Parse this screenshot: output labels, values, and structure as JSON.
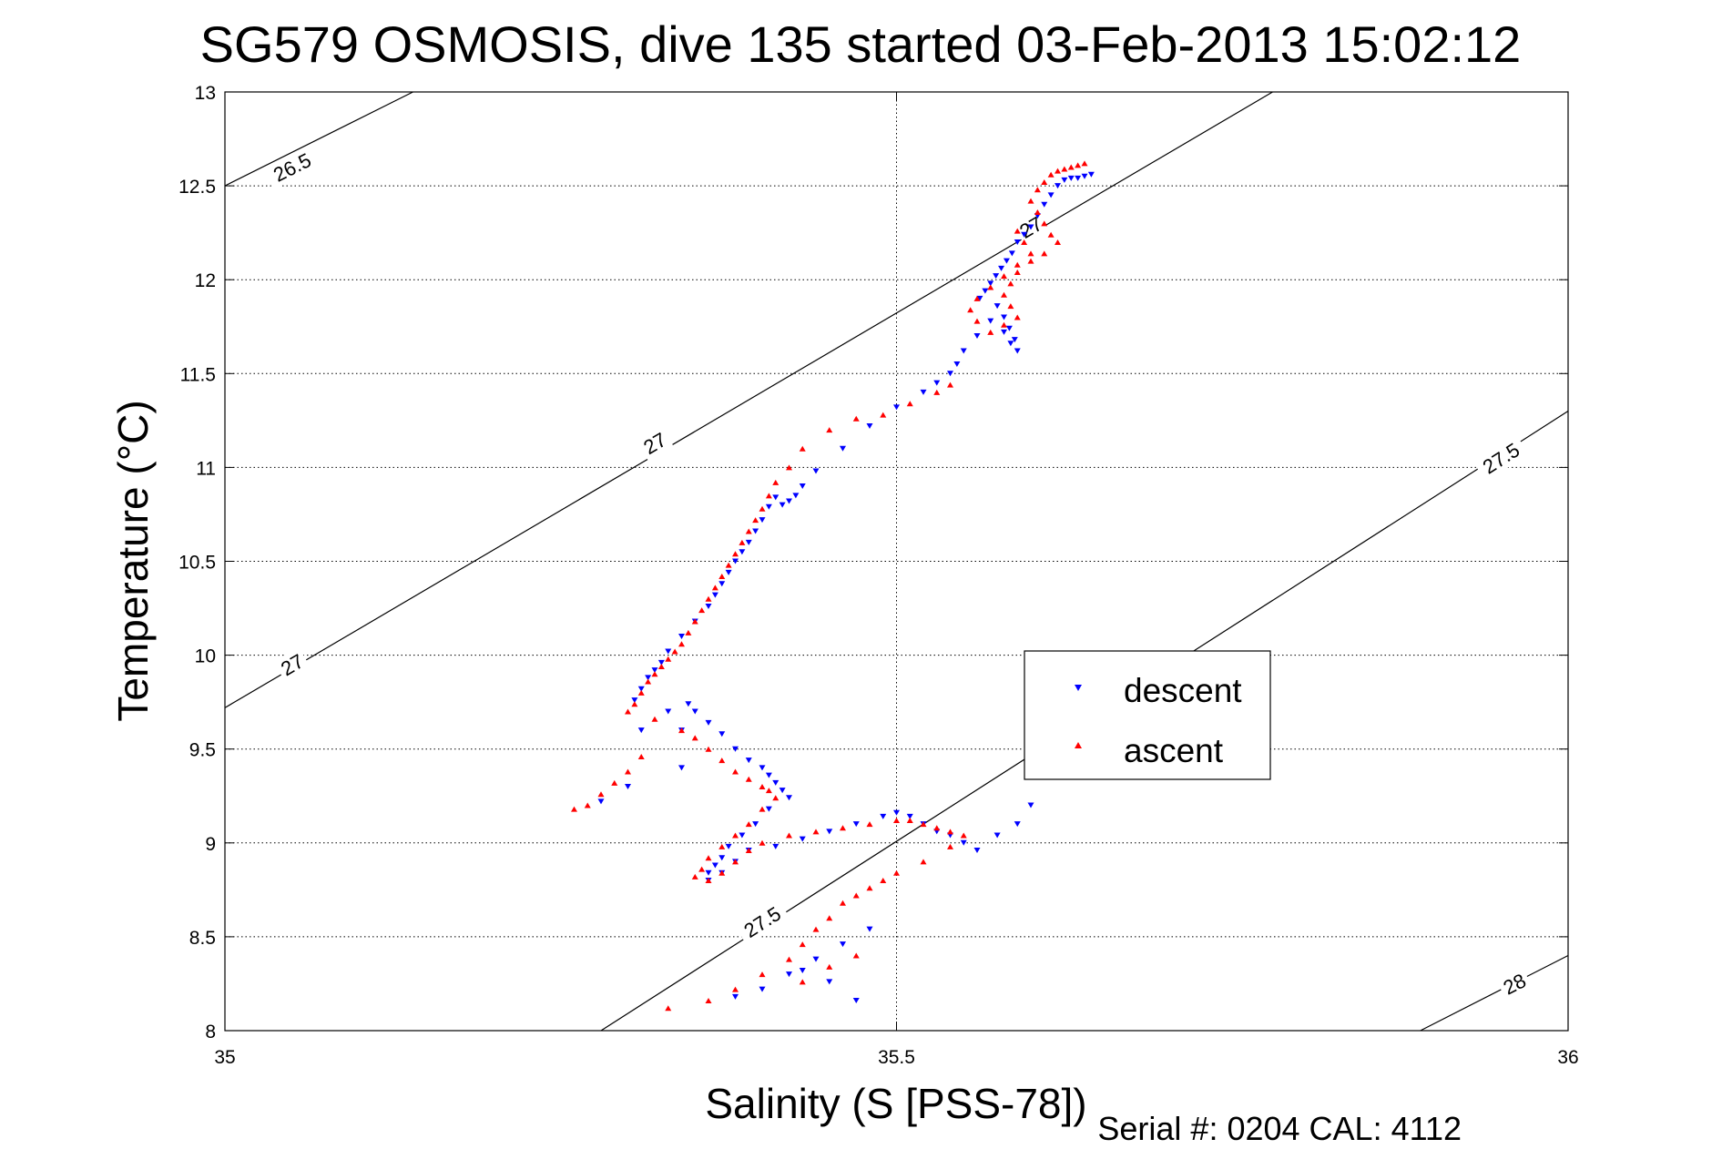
{
  "chart_data": {
    "type": "scatter",
    "title": "SG579 OSMOSIS, dive 135 started 03-Feb-2013 15:02:12",
    "xlabel": "Salinity (S [PSS-78])",
    "ylabel": "Temperature (°C)",
    "xlim": [
      35,
      36
    ],
    "ylim": [
      8,
      13
    ],
    "x_ticks": [
      "35",
      "35.5",
      "36"
    ],
    "y_ticks": [
      "8",
      "8.5",
      "9",
      "9.5",
      "10",
      "10.5",
      "11",
      "11.5",
      "12",
      "12.5",
      "13"
    ],
    "grid": true,
    "legend_position": "center-right",
    "footer": "Serial #: 0204  CAL: 4112",
    "colors": {
      "descent": "#0000ff",
      "ascent": "#ff0000",
      "isopycnal": "#000000"
    },
    "isopycnals": [
      {
        "label": "26.5",
        "points": [
          [
            35.0,
            12.5
          ],
          [
            35.14,
            13.0
          ]
        ],
        "label_at": [
          35.05,
          12.6
        ]
      },
      {
        "label": "27",
        "points": [
          [
            35.0,
            9.72
          ],
          [
            35.78,
            13.0
          ]
        ],
        "label_at": [
          [
            35.05,
            9.95
          ],
          [
            35.32,
            11.13
          ],
          [
            35.6,
            12.28
          ]
        ]
      },
      {
        "label": "27.5",
        "points": [
          [
            35.28,
            8.0
          ],
          [
            36.0,
            11.3
          ]
        ],
        "label_at": [
          [
            35.4,
            8.58
          ],
          [
            35.95,
            11.05
          ]
        ]
      },
      {
        "label": "28",
        "points": [
          [
            35.89,
            8.0
          ],
          [
            36.0,
            8.4
          ]
        ],
        "label_at": [
          35.96,
          8.25
        ]
      }
    ],
    "series": [
      {
        "name": "descent",
        "marker": "triangle-down",
        "x": [
          35.645,
          35.64,
          35.635,
          35.63,
          35.625,
          35.62,
          35.615,
          35.61,
          35.605,
          35.6,
          35.595,
          35.59,
          35.586,
          35.582,
          35.578,
          35.574,
          35.57,
          35.566,
          35.562,
          35.575,
          35.58,
          35.584,
          35.588,
          35.59,
          35.585,
          35.58,
          35.57,
          35.56,
          35.55,
          35.545,
          35.54,
          35.53,
          35.52,
          35.5,
          35.48,
          35.46,
          35.44,
          35.43,
          35.425,
          35.42,
          35.415,
          35.41,
          35.405,
          35.4,
          35.395,
          35.39,
          35.385,
          35.38,
          35.375,
          35.37,
          35.365,
          35.36,
          35.35,
          35.34,
          35.33,
          35.325,
          35.32,
          35.315,
          35.31,
          35.305,
          35.345,
          35.35,
          35.36,
          35.37,
          35.38,
          35.39,
          35.4,
          35.405,
          35.41,
          35.415,
          35.42,
          35.405,
          35.395,
          35.385,
          35.375,
          35.37,
          35.365,
          35.36,
          35.36,
          35.37,
          35.38,
          35.39,
          35.41,
          35.43,
          35.45,
          35.47,
          35.49,
          35.5,
          35.51,
          35.52,
          35.53,
          35.54,
          35.55,
          35.56,
          35.575,
          35.59,
          35.6,
          35.48,
          35.46,
          35.44,
          35.42,
          35.4,
          35.38,
          35.43,
          35.45,
          35.47,
          35.34,
          35.3,
          35.28,
          35.31,
          35.33,
          35.34
        ],
        "y": [
          12.56,
          12.55,
          12.54,
          12.54,
          12.53,
          12.5,
          12.45,
          12.4,
          12.34,
          12.28,
          12.24,
          12.2,
          12.14,
          12.1,
          12.06,
          12.02,
          11.98,
          11.94,
          11.9,
          11.86,
          11.8,
          11.74,
          11.68,
          11.62,
          11.66,
          11.72,
          11.78,
          11.7,
          11.62,
          11.55,
          11.5,
          11.45,
          11.4,
          11.32,
          11.22,
          11.1,
          10.98,
          10.9,
          10.85,
          10.82,
          10.8,
          10.84,
          10.79,
          10.72,
          10.66,
          10.6,
          10.55,
          10.5,
          10.44,
          10.38,
          10.32,
          10.26,
          10.18,
          10.1,
          10.02,
          9.96,
          9.92,
          9.88,
          9.82,
          9.76,
          9.74,
          9.7,
          9.64,
          9.58,
          9.5,
          9.44,
          9.4,
          9.36,
          9.32,
          9.28,
          9.24,
          9.18,
          9.1,
          9.04,
          8.98,
          8.92,
          8.88,
          8.84,
          8.8,
          8.84,
          8.9,
          8.96,
          8.98,
          9.02,
          9.06,
          9.1,
          9.14,
          9.16,
          9.14,
          9.1,
          9.06,
          9.04,
          9.0,
          8.96,
          9.04,
          9.1,
          9.2,
          8.54,
          8.46,
          8.38,
          8.3,
          8.22,
          8.18,
          8.32,
          8.26,
          8.16,
          9.4,
          9.3,
          9.22,
          9.6,
          9.7,
          9.6
        ]
      },
      {
        "name": "ascent",
        "marker": "triangle-up",
        "x": [
          35.64,
          35.635,
          35.63,
          35.625,
          35.62,
          35.615,
          35.61,
          35.605,
          35.6,
          35.605,
          35.61,
          35.615,
          35.62,
          35.61,
          35.6,
          35.59,
          35.585,
          35.58,
          35.585,
          35.59,
          35.58,
          35.57,
          35.56,
          35.555,
          35.56,
          35.57,
          35.58,
          35.59,
          35.6,
          35.595,
          35.59,
          35.54,
          35.53,
          35.51,
          35.49,
          35.47,
          35.45,
          35.43,
          35.42,
          35.41,
          35.405,
          35.4,
          35.395,
          35.39,
          35.385,
          35.38,
          35.375,
          35.37,
          35.365,
          35.36,
          35.355,
          35.35,
          35.345,
          35.34,
          35.335,
          35.33,
          35.325,
          35.32,
          35.315,
          35.31,
          35.305,
          35.3,
          35.32,
          35.34,
          35.35,
          35.36,
          35.37,
          35.38,
          35.39,
          35.4,
          35.405,
          35.41,
          35.4,
          35.39,
          35.38,
          35.37,
          35.36,
          35.355,
          35.35,
          35.36,
          35.37,
          35.38,
          35.39,
          35.4,
          35.42,
          35.44,
          35.46,
          35.48,
          35.5,
          35.51,
          35.52,
          35.53,
          35.54,
          35.55,
          35.54,
          35.52,
          35.5,
          35.49,
          35.48,
          35.47,
          35.46,
          35.45,
          35.44,
          35.43,
          35.42,
          35.4,
          35.38,
          35.36,
          35.33,
          35.31,
          35.3,
          35.29,
          35.28,
          35.27,
          35.26,
          35.47,
          35.45,
          35.43
        ],
        "y": [
          12.62,
          12.61,
          12.6,
          12.59,
          12.58,
          12.56,
          12.52,
          12.48,
          12.42,
          12.36,
          12.3,
          12.24,
          12.2,
          12.14,
          12.1,
          12.04,
          11.98,
          11.92,
          11.86,
          11.8,
          11.76,
          11.72,
          11.78,
          11.84,
          11.9,
          11.96,
          12.02,
          12.08,
          12.14,
          12.2,
          12.26,
          11.44,
          11.4,
          11.34,
          11.28,
          11.26,
          11.2,
          11.1,
          11.0,
          10.92,
          10.85,
          10.78,
          10.72,
          10.66,
          10.6,
          10.54,
          10.48,
          10.42,
          10.36,
          10.3,
          10.24,
          10.18,
          10.12,
          10.06,
          10.02,
          9.98,
          9.94,
          9.9,
          9.86,
          9.8,
          9.74,
          9.7,
          9.66,
          9.6,
          9.56,
          9.5,
          9.44,
          9.38,
          9.34,
          9.3,
          9.28,
          9.24,
          9.18,
          9.1,
          9.04,
          8.98,
          8.92,
          8.86,
          8.82,
          8.8,
          8.84,
          8.9,
          8.96,
          9.0,
          9.04,
          9.06,
          9.08,
          9.1,
          9.12,
          9.12,
          9.1,
          9.08,
          9.06,
          9.04,
          8.98,
          8.9,
          8.84,
          8.8,
          8.76,
          8.72,
          8.68,
          8.6,
          8.54,
          8.46,
          8.38,
          8.3,
          8.22,
          8.16,
          8.12,
          9.46,
          9.38,
          9.32,
          9.26,
          9.2,
          9.18,
          8.4,
          8.34,
          8.26
        ]
      }
    ]
  }
}
